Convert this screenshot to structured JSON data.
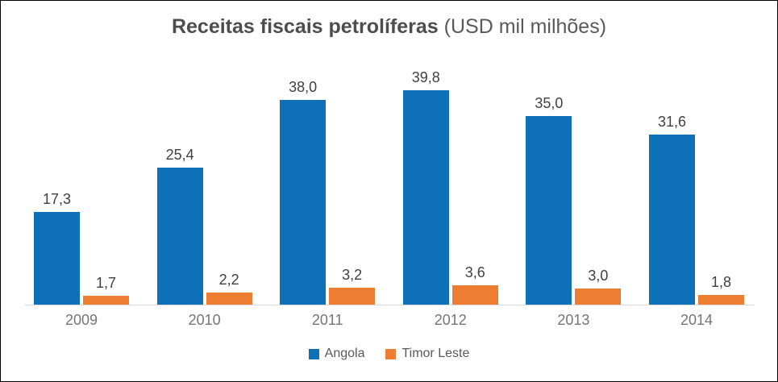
{
  "title": {
    "bold": "Receitas fiscais petrolíferas",
    "regular": " (USD mil milhões)"
  },
  "chart_data": {
    "type": "bar",
    "title": "Receitas fiscais petrolíferas (USD mil milhões)",
    "categories": [
      "2009",
      "2010",
      "2011",
      "2012",
      "2013",
      "2014"
    ],
    "series": [
      {
        "name": "Angola",
        "color": "#0f70ba",
        "values": [
          17.3,
          25.4,
          38.0,
          39.8,
          35.0,
          31.6
        ],
        "value_labels": [
          "17,3",
          "25,4",
          "38,0",
          "39,8",
          "35,0",
          "31,6"
        ]
      },
      {
        "name": "Timor Leste",
        "color": "#ed7d31",
        "values": [
          1.7,
          2.2,
          3.2,
          3.6,
          3.0,
          1.8
        ],
        "value_labels": [
          "1,7",
          "2,2",
          "3,2",
          "3,6",
          "3,0",
          "1,8"
        ]
      }
    ],
    "xlabel": "",
    "ylabel": "",
    "ylim": [
      0,
      40
    ],
    "grid": false,
    "y_axis_visible": false,
    "legend_position": "bottom",
    "value_labels_shown": true,
    "decimal_separator": ",",
    "colors": {
      "axis_line": "#d9d9d9",
      "value_label": "#404040",
      "category_label": "#757575",
      "legend_text": "#595959",
      "title_text": "#595959"
    }
  }
}
